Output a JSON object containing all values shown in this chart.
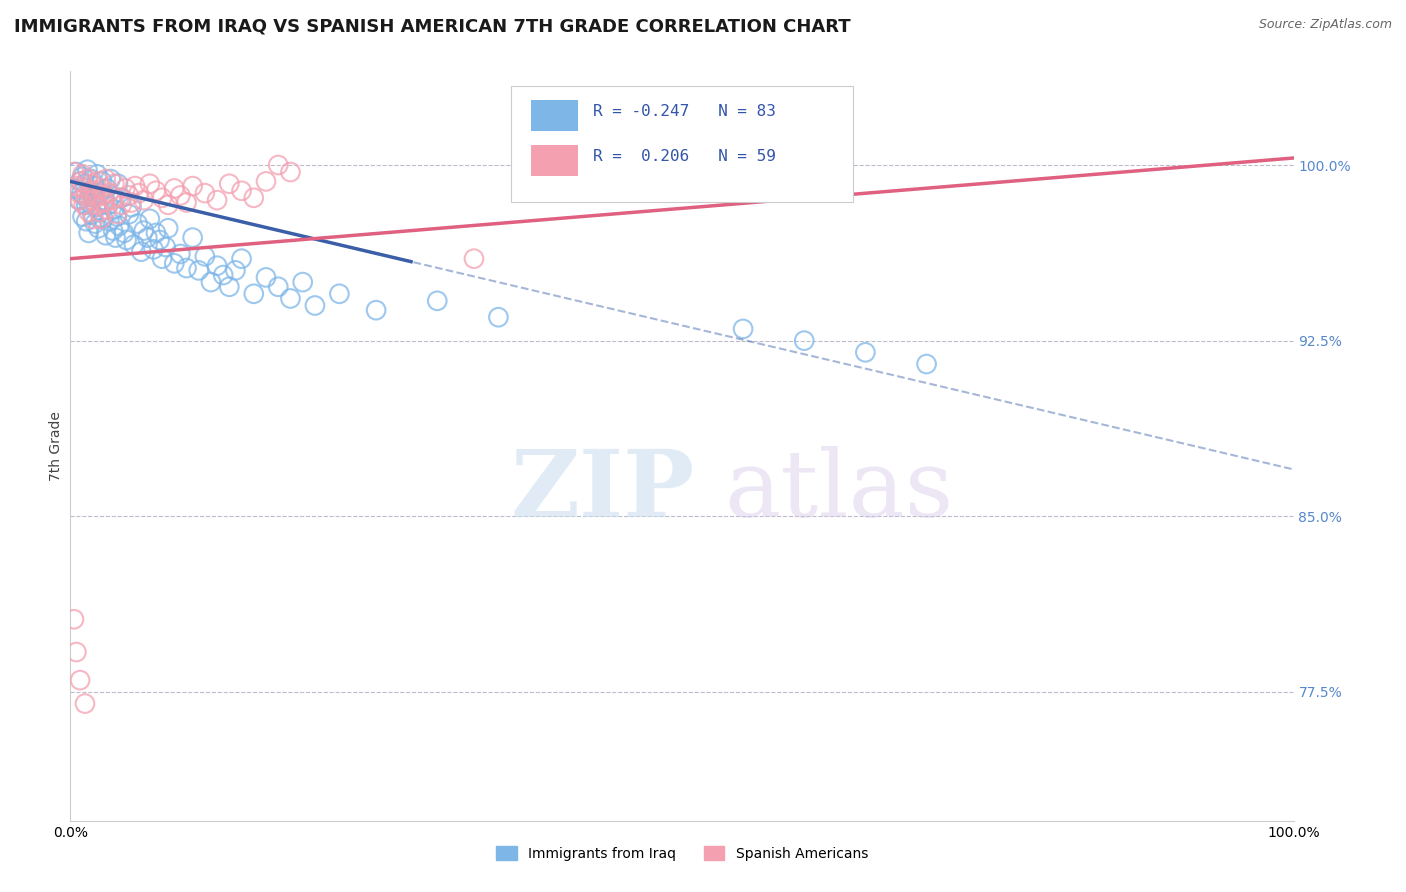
{
  "title": "IMMIGRANTS FROM IRAQ VS SPANISH AMERICAN 7TH GRADE CORRELATION CHART",
  "source_text": "Source: ZipAtlas.com",
  "ylabel": "7th Grade",
  "x_label_bottom_left": "0.0%",
  "x_label_bottom_right": "100.0%",
  "y_ticks": [
    0.775,
    0.85,
    0.925,
    1.0
  ],
  "y_tick_labels": [
    "77.5%",
    "85.0%",
    "92.5%",
    "100.0%"
  ],
  "xlim": [
    0.0,
    1.0
  ],
  "ylim": [
    0.72,
    1.04
  ],
  "blue_R": -0.247,
  "blue_N": 83,
  "pink_R": 0.206,
  "pink_N": 59,
  "blue_color": "#7EB6E8",
  "pink_color": "#F4A0B0",
  "blue_line_color": "#3A5FA8",
  "pink_line_color": "#E06080",
  "grid_color": "#BBBBCC",
  "legend_label_blue": "Immigrants from Iraq",
  "legend_label_pink": "Spanish Americans",
  "watermark_zip": "ZIP",
  "watermark_atlas": "atlas",
  "title_fontsize": 13,
  "axis_label_fontsize": 10,
  "tick_fontsize": 10,
  "blue_scatter_x": [
    0.003,
    0.005,
    0.007,
    0.008,
    0.009,
    0.01,
    0.01,
    0.011,
    0.012,
    0.013,
    0.013,
    0.014,
    0.015,
    0.015,
    0.016,
    0.017,
    0.018,
    0.019,
    0.02,
    0.02,
    0.021,
    0.022,
    0.023,
    0.024,
    0.025,
    0.026,
    0.027,
    0.028,
    0.029,
    0.03,
    0.031,
    0.032,
    0.033,
    0.034,
    0.035,
    0.036,
    0.037,
    0.038,
    0.039,
    0.04,
    0.042,
    0.044,
    0.046,
    0.048,
    0.05,
    0.052,
    0.055,
    0.058,
    0.06,
    0.063,
    0.065,
    0.068,
    0.07,
    0.073,
    0.075,
    0.078,
    0.08,
    0.085,
    0.09,
    0.095,
    0.1,
    0.105,
    0.11,
    0.115,
    0.12,
    0.125,
    0.13,
    0.135,
    0.14,
    0.15,
    0.16,
    0.17,
    0.18,
    0.19,
    0.2,
    0.22,
    0.25,
    0.3,
    0.35,
    0.55,
    0.6,
    0.65,
    0.7
  ],
  "blue_scatter_y": [
    0.99,
    0.997,
    0.985,
    0.993,
    0.988,
    0.995,
    0.978,
    0.987,
    0.992,
    0.983,
    0.976,
    0.998,
    0.984,
    0.971,
    0.989,
    0.994,
    0.979,
    0.986,
    0.991,
    0.975,
    0.982,
    0.996,
    0.973,
    0.988,
    0.98,
    0.993,
    0.977,
    0.985,
    0.97,
    0.99,
    0.983,
    0.976,
    0.994,
    0.987,
    0.972,
    0.981,
    0.969,
    0.978,
    0.992,
    0.974,
    0.986,
    0.971,
    0.968,
    0.979,
    0.982,
    0.966,
    0.975,
    0.963,
    0.972,
    0.969,
    0.977,
    0.964,
    0.971,
    0.968,
    0.96,
    0.965,
    0.973,
    0.958,
    0.962,
    0.956,
    0.969,
    0.955,
    0.961,
    0.95,
    0.957,
    0.953,
    0.948,
    0.955,
    0.96,
    0.945,
    0.952,
    0.948,
    0.943,
    0.95,
    0.94,
    0.945,
    0.938,
    0.942,
    0.935,
    0.93,
    0.925,
    0.92,
    0.915
  ],
  "pink_scatter_x": [
    0.003,
    0.005,
    0.007,
    0.008,
    0.009,
    0.01,
    0.011,
    0.012,
    0.013,
    0.014,
    0.015,
    0.016,
    0.017,
    0.018,
    0.019,
    0.02,
    0.021,
    0.022,
    0.023,
    0.024,
    0.025,
    0.026,
    0.027,
    0.028,
    0.029,
    0.03,
    0.032,
    0.034,
    0.036,
    0.038,
    0.04,
    0.042,
    0.045,
    0.048,
    0.05,
    0.053,
    0.056,
    0.06,
    0.065,
    0.07,
    0.075,
    0.08,
    0.085,
    0.09,
    0.095,
    0.1,
    0.11,
    0.12,
    0.13,
    0.14,
    0.15,
    0.16,
    0.17,
    0.18,
    0.33,
    0.003,
    0.005,
    0.008,
    0.012
  ],
  "pink_scatter_y": [
    0.997,
    0.991,
    0.988,
    0.985,
    0.993,
    0.996,
    0.983,
    0.99,
    0.987,
    0.994,
    0.98,
    0.988,
    0.985,
    0.992,
    0.977,
    0.989,
    0.986,
    0.983,
    0.993,
    0.98,
    0.977,
    0.99,
    0.987,
    0.984,
    0.994,
    0.981,
    0.988,
    0.985,
    0.992,
    0.979,
    0.986,
    0.983,
    0.99,
    0.987,
    0.984,
    0.991,
    0.988,
    0.985,
    0.992,
    0.989,
    0.986,
    0.983,
    0.99,
    0.987,
    0.984,
    0.991,
    0.988,
    0.985,
    0.992,
    0.989,
    0.986,
    0.993,
    1.0,
    0.997,
    0.96,
    0.806,
    0.792,
    0.78,
    0.77
  ],
  "blue_line_start_x": 0.0,
  "blue_line_end_solid_x": 0.28,
  "blue_line_start_y": 0.993,
  "blue_line_end_y": 0.87,
  "pink_line_start_x": 0.0,
  "pink_line_end_x": 1.0,
  "pink_line_start_y": 0.96,
  "pink_line_end_y": 1.003
}
